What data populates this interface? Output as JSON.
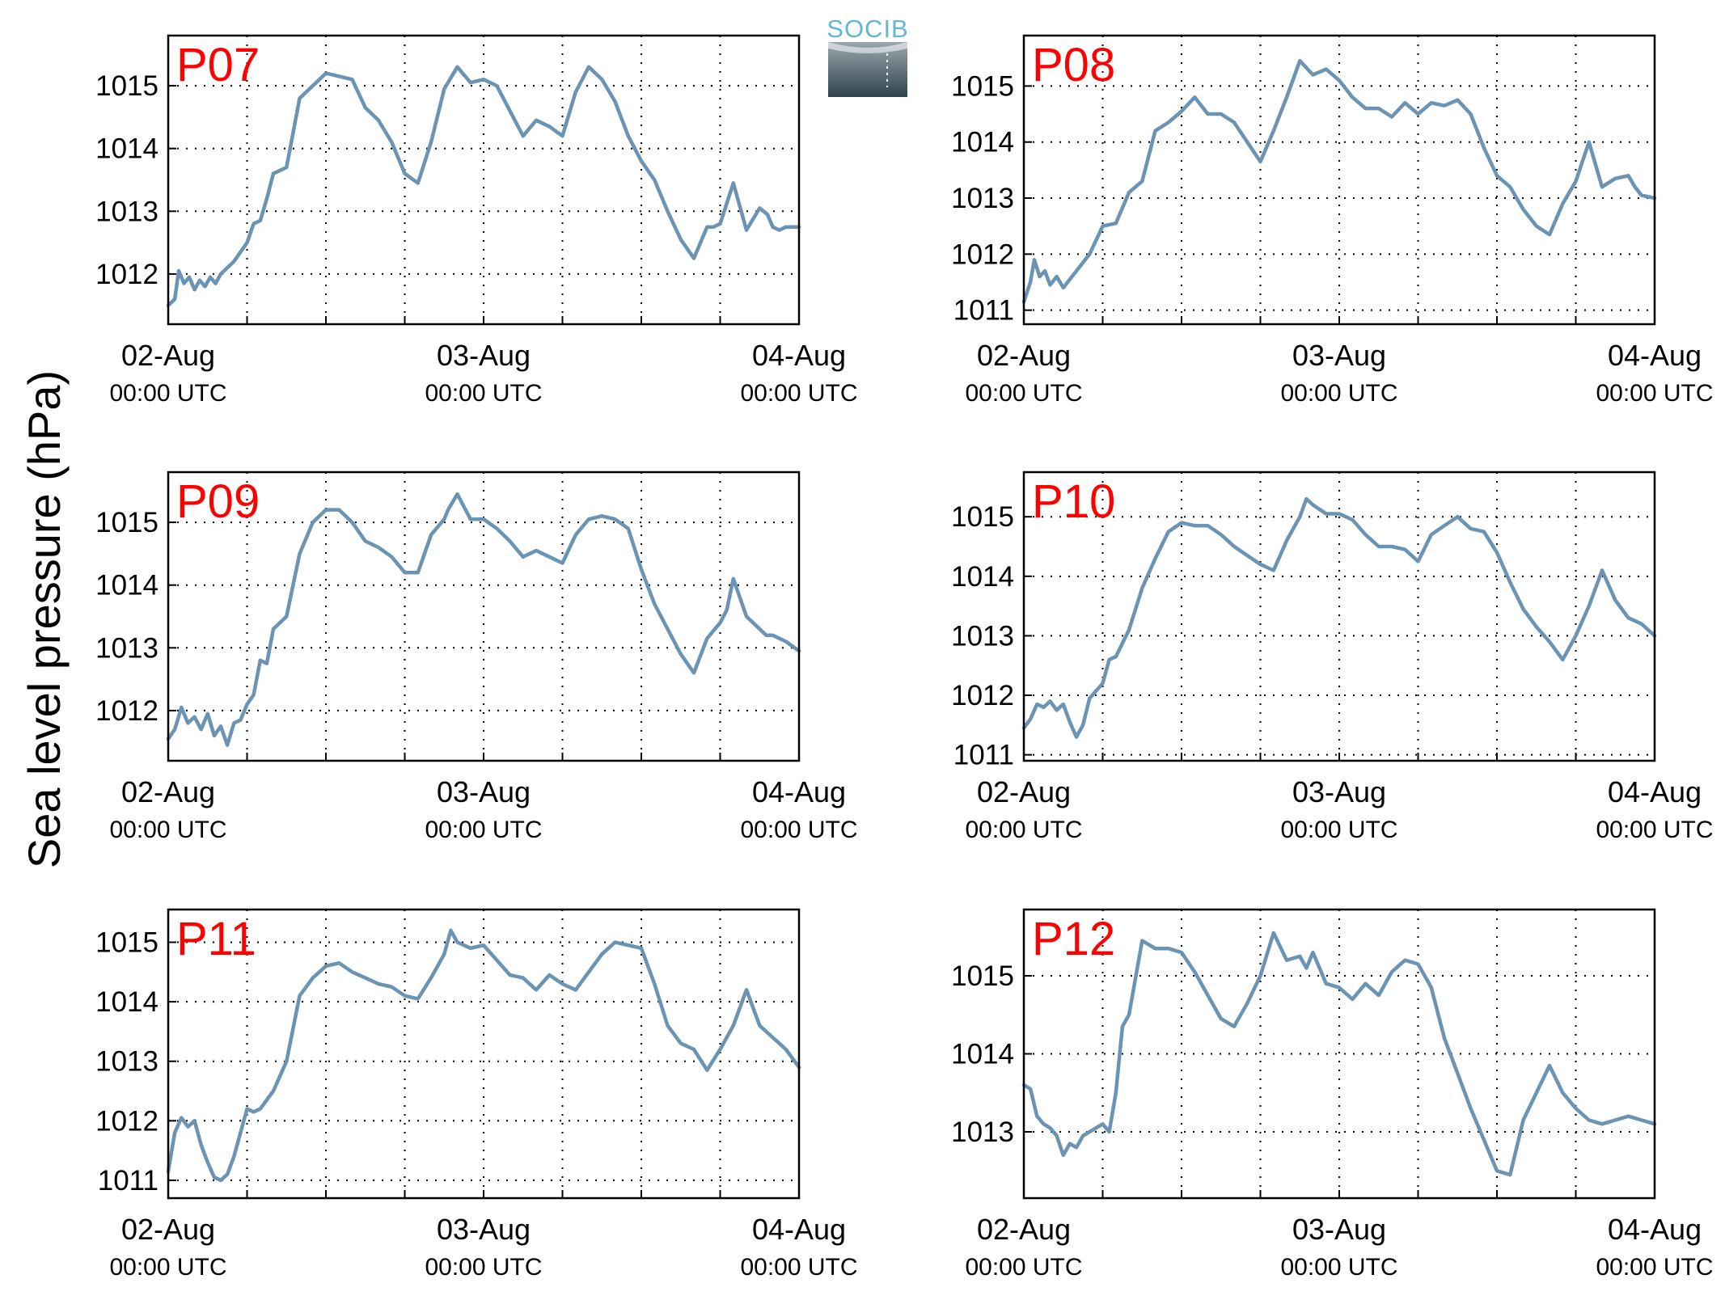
{
  "figure": {
    "ylabel": "Sea level pressure (hPa)",
    "line_color": "#6a93b4",
    "label_color": "#ff0000",
    "logo": {
      "text": "SOCIB",
      "icon": "socib-logo-icon",
      "text_color": "#5fb9cf",
      "top_color": "#9aa7ad",
      "bottom_color": "#2f434e"
    }
  },
  "chart_data": [
    {
      "type": "line",
      "title": "P07",
      "x_range_hours": [
        0,
        48
      ],
      "x_ticks": [
        {
          "hour": 0,
          "date": "02-Aug",
          "time": "00:00 UTC"
        },
        {
          "hour": 24,
          "date": "03-Aug",
          "time": "00:00 UTC"
        },
        {
          "hour": 48,
          "date": "04-Aug",
          "time": "00:00 UTC"
        }
      ],
      "ylim": [
        1011.2,
        1015.8
      ],
      "y_ticks": [
        1012,
        1013,
        1014,
        1015
      ],
      "grid": true,
      "series": [
        {
          "x": [
            0,
            0.5,
            0.8,
            1.2,
            1.6,
            2,
            2.4,
            2.8,
            3.2,
            3.6,
            4,
            5,
            6,
            6.5,
            7,
            7.5,
            8,
            9,
            10,
            11,
            12,
            13,
            14,
            15,
            16,
            17,
            18,
            19,
            20,
            21,
            22,
            23,
            24,
            25,
            26,
            27,
            28,
            29,
            30,
            31,
            32,
            33,
            34,
            35,
            36,
            37,
            38,
            39,
            40,
            41,
            41.5,
            42,
            43,
            44,
            45,
            45.6,
            46,
            46.5,
            47,
            47.5,
            48
          ],
          "y": [
            1011.5,
            1011.6,
            1012.05,
            1011.85,
            1011.95,
            1011.75,
            1011.9,
            1011.8,
            1011.95,
            1011.85,
            1012.0,
            1012.2,
            1012.5,
            1012.8,
            1012.85,
            1013.2,
            1013.6,
            1013.7,
            1014.8,
            1015.0,
            1015.2,
            1015.15,
            1015.1,
            1014.65,
            1014.45,
            1014.1,
            1013.6,
            1013.45,
            1014.1,
            1014.95,
            1015.3,
            1015.05,
            1015.1,
            1015.0,
            1014.6,
            1014.2,
            1014.45,
            1014.35,
            1014.2,
            1014.9,
            1015.3,
            1015.1,
            1014.75,
            1014.2,
            1013.8,
            1013.5,
            1013.0,
            1012.55,
            1012.25,
            1012.75,
            1012.75,
            1012.8,
            1013.45,
            1012.7,
            1013.05,
            1012.95,
            1012.75,
            1012.7,
            1012.75,
            1012.75,
            1012.75
          ]
        }
      ]
    },
    {
      "type": "line",
      "title": "P08",
      "x_range_hours": [
        0,
        48
      ],
      "x_ticks": [
        {
          "hour": 0,
          "date": "02-Aug",
          "time": "00:00 UTC"
        },
        {
          "hour": 24,
          "date": "03-Aug",
          "time": "00:00 UTC"
        },
        {
          "hour": 48,
          "date": "04-Aug",
          "time": "00:00 UTC"
        }
      ],
      "ylim": [
        1010.75,
        1015.9
      ],
      "y_ticks": [
        1011,
        1012,
        1013,
        1014,
        1015
      ],
      "grid": true,
      "series": [
        {
          "x": [
            0,
            0.5,
            0.8,
            1.2,
            1.6,
            2,
            2.5,
            3,
            3.5,
            4,
            5,
            6,
            7,
            8,
            9,
            10,
            11,
            12,
            13,
            14,
            15,
            16,
            17,
            18,
            19,
            20,
            21,
            22,
            23,
            24,
            25,
            26,
            27,
            28,
            29,
            30,
            31,
            32,
            33,
            34,
            35,
            36,
            37,
            38,
            39,
            40,
            41,
            42,
            43,
            44,
            45,
            46,
            46.5,
            47,
            48
          ],
          "y": [
            1011.15,
            1011.5,
            1011.9,
            1011.6,
            1011.7,
            1011.45,
            1011.6,
            1011.4,
            1011.55,
            1011.7,
            1012.0,
            1012.5,
            1012.55,
            1013.1,
            1013.3,
            1014.2,
            1014.35,
            1014.55,
            1014.8,
            1014.5,
            1014.5,
            1014.35,
            1014.0,
            1013.65,
            1014.2,
            1014.8,
            1015.45,
            1015.2,
            1015.3,
            1015.1,
            1014.8,
            1014.6,
            1014.6,
            1014.45,
            1014.7,
            1014.5,
            1014.7,
            1014.65,
            1014.75,
            1014.5,
            1013.9,
            1013.4,
            1013.2,
            1012.8,
            1012.5,
            1012.35,
            1012.9,
            1013.3,
            1014.0,
            1013.2,
            1013.35,
            1013.4,
            1013.2,
            1013.05,
            1013.0
          ]
        }
      ]
    },
    {
      "type": "line",
      "title": "P09",
      "x_range_hours": [
        0,
        48
      ],
      "x_ticks": [
        {
          "hour": 0,
          "date": "02-Aug",
          "time": "00:00 UTC"
        },
        {
          "hour": 24,
          "date": "03-Aug",
          "time": "00:00 UTC"
        },
        {
          "hour": 48,
          "date": "04-Aug",
          "time": "00:00 UTC"
        }
      ],
      "ylim": [
        1011.2,
        1015.8
      ],
      "y_ticks": [
        1012,
        1013,
        1014,
        1015
      ],
      "grid": true,
      "series": [
        {
          "x": [
            0,
            0.5,
            1,
            1.5,
            2,
            2.5,
            3,
            3.5,
            4,
            4.5,
            5,
            5.5,
            6,
            6.5,
            7,
            7.5,
            8,
            9,
            10,
            11,
            12,
            13,
            14,
            15,
            16,
            17,
            18,
            19,
            20,
            21,
            21.3,
            22,
            23,
            24,
            25,
            26,
            27,
            28,
            29,
            30,
            31,
            32,
            33,
            34,
            35,
            36,
            37,
            38,
            39,
            40,
            41,
            42,
            42.5,
            43,
            44,
            45,
            45.5,
            46,
            47,
            48
          ],
          "y": [
            1011.55,
            1011.7,
            1012.05,
            1011.8,
            1011.9,
            1011.7,
            1011.95,
            1011.6,
            1011.75,
            1011.45,
            1011.8,
            1011.85,
            1012.1,
            1012.25,
            1012.8,
            1012.75,
            1013.3,
            1013.5,
            1014.5,
            1015.0,
            1015.2,
            1015.2,
            1015.0,
            1014.7,
            1014.6,
            1014.45,
            1014.2,
            1014.2,
            1014.8,
            1015.05,
            1015.2,
            1015.45,
            1015.05,
            1015.05,
            1014.9,
            1014.7,
            1014.45,
            1014.55,
            1014.45,
            1014.35,
            1014.8,
            1015.05,
            1015.1,
            1015.05,
            1014.9,
            1014.25,
            1013.7,
            1013.3,
            1012.9,
            1012.6,
            1013.15,
            1013.4,
            1013.6,
            1014.1,
            1013.5,
            1013.3,
            1013.2,
            1013.2,
            1013.1,
            1012.95
          ]
        }
      ]
    },
    {
      "type": "line",
      "title": "P10",
      "x_range_hours": [
        0,
        48
      ],
      "x_ticks": [
        {
          "hour": 0,
          "date": "02-Aug",
          "time": "00:00 UTC"
        },
        {
          "hour": 24,
          "date": "03-Aug",
          "time": "00:00 UTC"
        },
        {
          "hour": 48,
          "date": "04-Aug",
          "time": "00:00 UTC"
        }
      ],
      "ylim": [
        1010.9,
        1015.75
      ],
      "y_ticks": [
        1011,
        1012,
        1013,
        1014,
        1015
      ],
      "grid": true,
      "series": [
        {
          "x": [
            0,
            0.5,
            1,
            1.5,
            2,
            2.5,
            3,
            3.5,
            4,
            4.5,
            5,
            6,
            6.5,
            7,
            8,
            9,
            10,
            11,
            12,
            13,
            14,
            15,
            16,
            17,
            18,
            19,
            20,
            21,
            21.5,
            22,
            23,
            24,
            25,
            26,
            27,
            28,
            29,
            30,
            31,
            32,
            33,
            34,
            35,
            36,
            37,
            38,
            39,
            40,
            41,
            42,
            43,
            44,
            45,
            46,
            47,
            48
          ],
          "y": [
            1011.45,
            1011.6,
            1011.85,
            1011.8,
            1011.9,
            1011.75,
            1011.85,
            1011.55,
            1011.3,
            1011.5,
            1011.95,
            1012.2,
            1012.6,
            1012.65,
            1013.1,
            1013.8,
            1014.3,
            1014.75,
            1014.9,
            1014.85,
            1014.85,
            1014.7,
            1014.5,
            1014.35,
            1014.2,
            1014.1,
            1014.6,
            1015.0,
            1015.3,
            1015.2,
            1015.05,
            1015.05,
            1014.95,
            1014.7,
            1014.5,
            1014.5,
            1014.45,
            1014.25,
            1014.7,
            1014.85,
            1015.0,
            1014.8,
            1014.75,
            1014.4,
            1013.9,
            1013.45,
            1013.15,
            1012.9,
            1012.6,
            1013.0,
            1013.5,
            1014.1,
            1013.6,
            1013.3,
            1013.2,
            1013.0
          ]
        }
      ]
    },
    {
      "type": "line",
      "title": "P11",
      "x_range_hours": [
        0,
        48
      ],
      "x_ticks": [
        {
          "hour": 0,
          "date": "02-Aug",
          "time": "00:00 UTC"
        },
        {
          "hour": 24,
          "date": "03-Aug",
          "time": "00:00 UTC"
        },
        {
          "hour": 48,
          "date": "04-Aug",
          "time": "00:00 UTC"
        }
      ],
      "ylim": [
        1010.7,
        1015.55
      ],
      "y_ticks": [
        1011,
        1012,
        1013,
        1014,
        1015
      ],
      "grid": true,
      "series": [
        {
          "x": [
            0,
            0.5,
            1,
            1.5,
            2,
            2.5,
            3,
            3.5,
            4,
            4.5,
            5,
            5.5,
            6,
            6.5,
            7,
            8,
            9,
            10,
            11,
            12,
            13,
            14,
            15,
            16,
            17,
            18,
            19,
            20,
            21,
            21.5,
            22,
            23,
            24,
            25,
            26,
            27,
            28,
            29,
            30,
            31,
            32,
            33,
            34,
            35,
            36,
            37,
            38,
            39,
            40,
            41,
            42,
            43,
            44,
            45,
            46,
            47,
            48
          ],
          "y": [
            1011.15,
            1011.8,
            1012.05,
            1011.9,
            1012.0,
            1011.6,
            1011.3,
            1011.05,
            1011.0,
            1011.1,
            1011.4,
            1011.8,
            1012.2,
            1012.15,
            1012.2,
            1012.5,
            1013.0,
            1014.1,
            1014.4,
            1014.6,
            1014.65,
            1014.5,
            1014.4,
            1014.3,
            1014.25,
            1014.1,
            1014.05,
            1014.4,
            1014.8,
            1015.2,
            1015.0,
            1014.9,
            1014.95,
            1014.7,
            1014.45,
            1014.4,
            1014.2,
            1014.45,
            1014.3,
            1014.2,
            1014.5,
            1014.8,
            1015.0,
            1014.95,
            1014.9,
            1014.3,
            1013.6,
            1013.3,
            1013.2,
            1012.85,
            1013.2,
            1013.6,
            1014.2,
            1013.6,
            1013.4,
            1013.2,
            1012.9
          ]
        }
      ]
    },
    {
      "type": "line",
      "title": "P12",
      "x_range_hours": [
        0,
        48
      ],
      "x_ticks": [
        {
          "hour": 0,
          "date": "02-Aug",
          "time": "00:00 UTC"
        },
        {
          "hour": 24,
          "date": "03-Aug",
          "time": "00:00 UTC"
        },
        {
          "hour": 48,
          "date": "04-Aug",
          "time": "00:00 UTC"
        }
      ],
      "ylim": [
        1012.15,
        1015.85
      ],
      "y_ticks": [
        1013,
        1014,
        1015
      ],
      "grid": true,
      "series": [
        {
          "x": [
            0,
            0.5,
            1,
            1.5,
            2,
            2.5,
            3,
            3.5,
            4,
            4.5,
            5,
            6,
            6.5,
            7,
            7.5,
            8,
            9,
            10,
            11,
            12,
            13,
            14,
            15,
            16,
            17,
            18,
            19,
            20,
            21,
            21.5,
            22,
            23,
            24,
            25,
            26,
            27,
            28,
            29,
            30,
            31,
            32,
            33,
            34,
            35,
            36,
            37,
            38,
            39,
            40,
            41,
            42,
            43,
            44,
            45,
            46,
            47,
            48
          ],
          "y": [
            1013.6,
            1013.55,
            1013.2,
            1013.1,
            1013.05,
            1012.95,
            1012.7,
            1012.85,
            1012.8,
            1012.95,
            1013.0,
            1013.1,
            1013.0,
            1013.5,
            1014.35,
            1014.5,
            1015.45,
            1015.35,
            1015.35,
            1015.3,
            1015.05,
            1014.75,
            1014.45,
            1014.35,
            1014.65,
            1015.0,
            1015.55,
            1015.2,
            1015.25,
            1015.1,
            1015.3,
            1014.9,
            1014.85,
            1014.7,
            1014.9,
            1014.75,
            1015.05,
            1015.2,
            1015.15,
            1014.85,
            1014.2,
            1013.75,
            1013.3,
            1012.9,
            1012.5,
            1012.45,
            1013.15,
            1013.5,
            1013.85,
            1013.5,
            1013.3,
            1013.15,
            1013.1,
            1013.15,
            1013.2,
            1013.15,
            1013.1
          ]
        }
      ]
    }
  ]
}
